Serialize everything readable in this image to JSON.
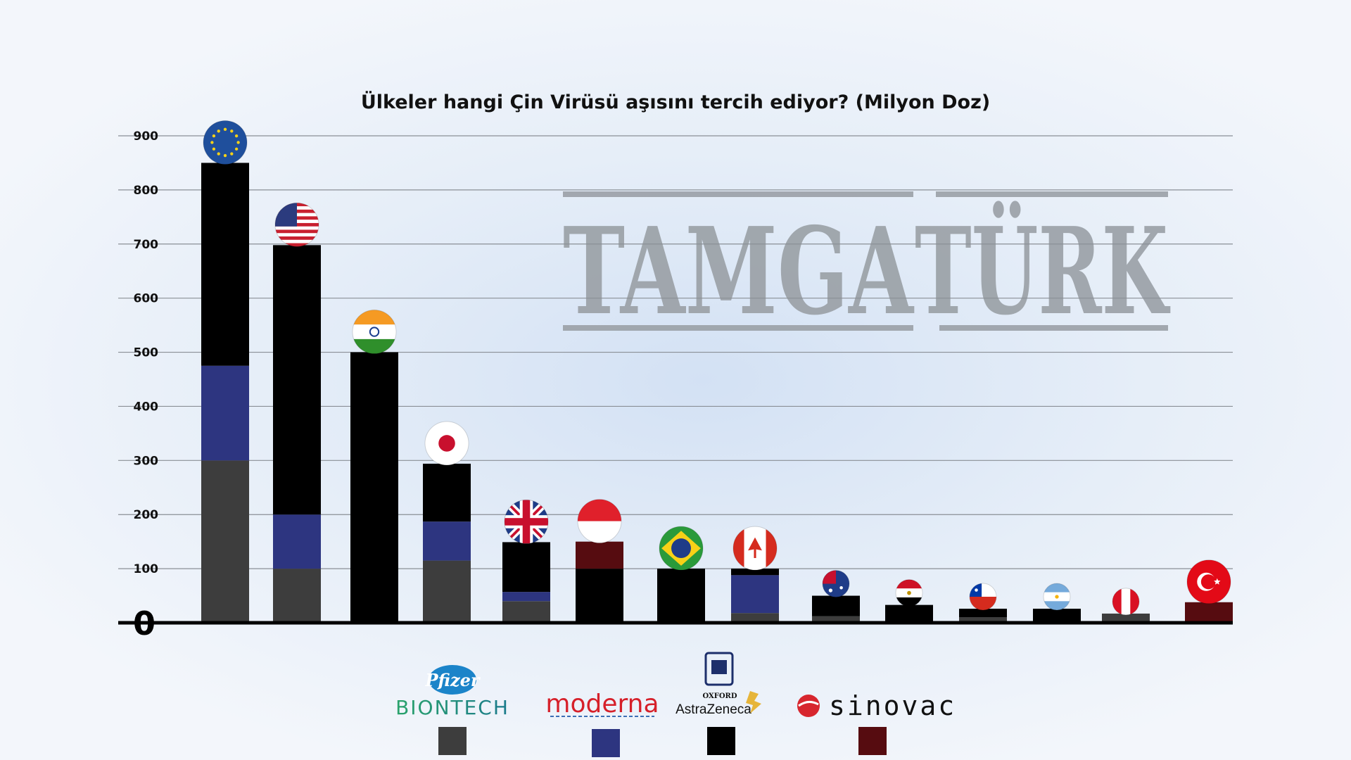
{
  "chart_data": {
    "type": "bar",
    "stacked": true,
    "title": "Ülkeler hangi Çin Virüsü aşısını tercih ediyor? (Milyon Doz)",
    "xlabel": "",
    "ylabel": "",
    "ylim": [
      0,
      900
    ],
    "yticks": [
      100,
      200,
      300,
      400,
      500,
      600,
      700,
      800,
      900
    ],
    "zero_label": "0",
    "grid": true,
    "categories": [
      "EU",
      "USA",
      "India",
      "Japan",
      "UK",
      "Indonesia",
      "Brazil",
      "Canada",
      "Australia",
      "Egypt",
      "Chile",
      "Argentina",
      "Peru",
      "Turkey"
    ],
    "category_flags": [
      "eu-flag-icon",
      "usa-flag-icon",
      "india-flag-icon",
      "japan-flag-icon",
      "uk-flag-icon",
      "indonesia-flag-icon",
      "brazil-flag-icon",
      "canada-flag-icon",
      "australia-flag-icon",
      "egypt-flag-icon",
      "chile-flag-icon",
      "argentina-flag-icon",
      "peru-flag-icon",
      "turkey-flag-icon"
    ],
    "series": [
      {
        "name": "Pfizer BioNTech",
        "color": "#3d3d3d",
        "values": [
          300,
          100,
          0,
          115,
          40,
          0,
          0,
          18,
          12,
          0,
          10,
          0,
          17,
          0
        ]
      },
      {
        "name": "Moderna",
        "color": "#2d3580",
        "values": [
          175,
          100,
          0,
          72,
          17,
          0,
          0,
          70,
          0,
          0,
          0,
          0,
          0,
          0
        ]
      },
      {
        "name": "Oxford AstraZeneca",
        "color": "#000000",
        "values": [
          375,
          498,
          500,
          107,
          92,
          100,
          100,
          12,
          38,
          33,
          16,
          26,
          0,
          0
        ]
      },
      {
        "name": "Sinovac",
        "color": "#560c10",
        "values": [
          0,
          0,
          0,
          0,
          0,
          50,
          0,
          0,
          0,
          0,
          0,
          0,
          0,
          38
        ]
      }
    ],
    "legend_position": "bottom"
  },
  "watermark": {
    "text_left": "TAMGA",
    "text_right": "TÜRK"
  },
  "legend_logos": {
    "pfizer": "Pfizer",
    "biontech": "BIONTECH",
    "moderna": "moderna",
    "oxford": "OXFORD",
    "astrazeneca": "AstraZeneca",
    "sinovac": "sinovac"
  }
}
